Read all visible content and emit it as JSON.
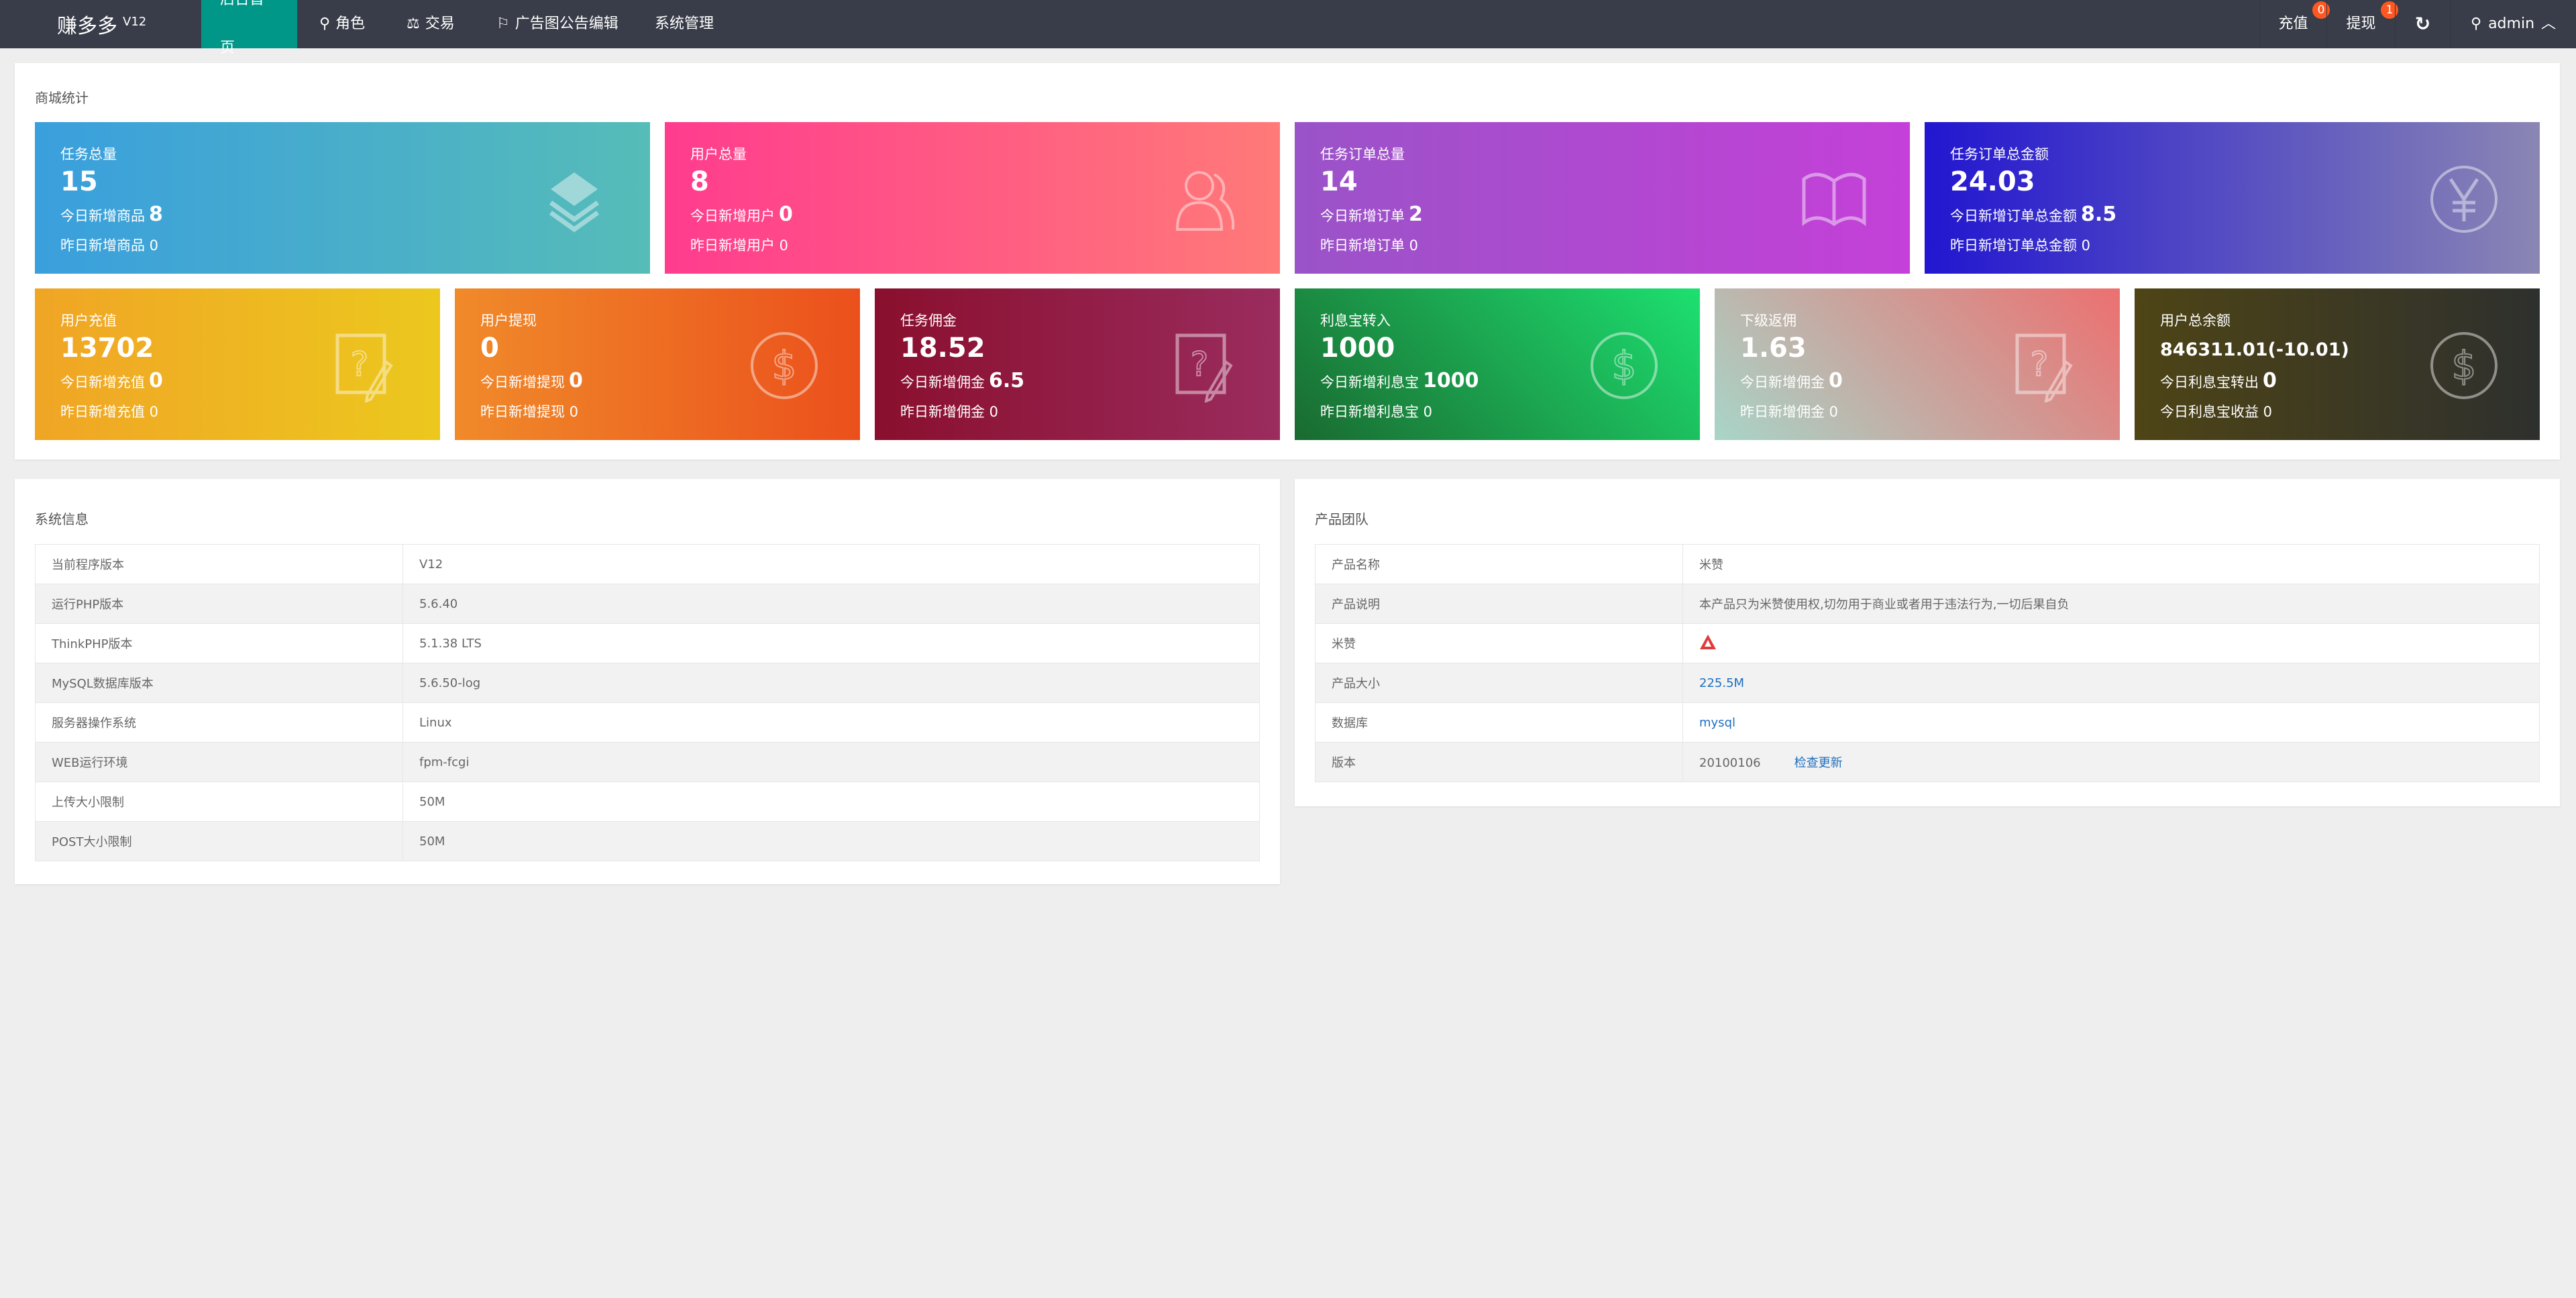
{
  "nav": {
    "logo": "赚多多",
    "version": "V12",
    "items": [
      {
        "label": "后台首页",
        "icon": "home"
      },
      {
        "label": "角色",
        "icon": "user-icon"
      },
      {
        "label": "交易",
        "icon": "scale-icon"
      },
      {
        "label": "广告图公告编辑",
        "icon": "flag-icon"
      },
      {
        "label": "系统管理",
        "icon": ""
      }
    ],
    "recharge": "充值",
    "recharge_badge": "0",
    "withdraw": "提现",
    "withdraw_badge": "1",
    "user": "admin"
  },
  "stats": {
    "title": "商城统计",
    "cards": [
      {
        "title": "任务总量",
        "value": "15",
        "l1": "今日新增商品",
        "l1v": "8",
        "l2": "昨日新增商品 0",
        "icon": "layers-icon"
      },
      {
        "title": "用户总量",
        "value": "8",
        "l1": "今日新增用户",
        "l1v": "0",
        "l2": "昨日新增用户 0",
        "icon": "users-icon"
      },
      {
        "title": "任务订单总量",
        "value": "14",
        "l1": "今日新增订单",
        "l1v": "2",
        "l2": "昨日新增订单 0",
        "icon": "book-icon"
      },
      {
        "title": "任务订单总金额",
        "value": "24.03",
        "l1": "今日新增订单总金额",
        "l1v": "8.5",
        "l2": "昨日新增订单总金额 0",
        "icon": "yen-icon"
      },
      {
        "title": "用户充值",
        "value": "13702",
        "l1": "今日新增充值",
        "l1v": "0",
        "l2": "昨日新增充值 0",
        "icon": "note-question-icon"
      },
      {
        "title": "用户提现",
        "value": "0",
        "l1": "今日新增提现",
        "l1v": "0",
        "l2": "昨日新增提现 0",
        "icon": "dollar-icon"
      },
      {
        "title": "任务佣金",
        "value": "18.52",
        "l1": "今日新增佣金",
        "l1v": "6.5",
        "l2": "昨日新增佣金 0",
        "icon": "note-question-icon"
      },
      {
        "title": "利息宝转入",
        "value": "1000",
        "l1": "今日新增利息宝",
        "l1v": "1000",
        "l2": "昨日新增利息宝 0",
        "icon": "dollar-icon"
      },
      {
        "title": "下级返佣",
        "value": "1.63",
        "l1": "今日新增佣金",
        "l1v": "0",
        "l2": "昨日新增佣金 0",
        "icon": "note-question-icon"
      },
      {
        "title": "用户总余额",
        "value": "846311.01(-10.01)",
        "l1": "今日利息宝转出",
        "l1v": "0",
        "l2": "今日利息宝收益 0",
        "icon": "dollar-icon"
      }
    ]
  },
  "sys": {
    "title": "系统信息",
    "rows": [
      [
        "当前程序版本",
        "V12"
      ],
      [
        "运行PHP版本",
        "5.6.40"
      ],
      [
        "ThinkPHP版本",
        "5.1.38 LTS"
      ],
      [
        "MySQL数据库版本",
        "5.6.50-log"
      ],
      [
        "服务器操作系统",
        "Linux"
      ],
      [
        "WEB运行环境",
        "fpm-fcgi"
      ],
      [
        "上传大小限制",
        "50M"
      ],
      [
        "POST大小限制",
        "50M"
      ]
    ]
  },
  "team": {
    "title": "产品团队",
    "rows": [
      [
        "产品名称",
        "米赞"
      ],
      [
        "产品说明",
        "本产品只为米赞使用权,切勿用于商业或者用于违法行为,一切后果自负"
      ],
      [
        "米赞",
        ""
      ],
      [
        "产品大小",
        "225.5M"
      ],
      [
        "数据库",
        "mysql"
      ],
      [
        "版本",
        "20100106"
      ]
    ],
    "check_update": "检查更新",
    "accent": "#1e6fc0"
  }
}
